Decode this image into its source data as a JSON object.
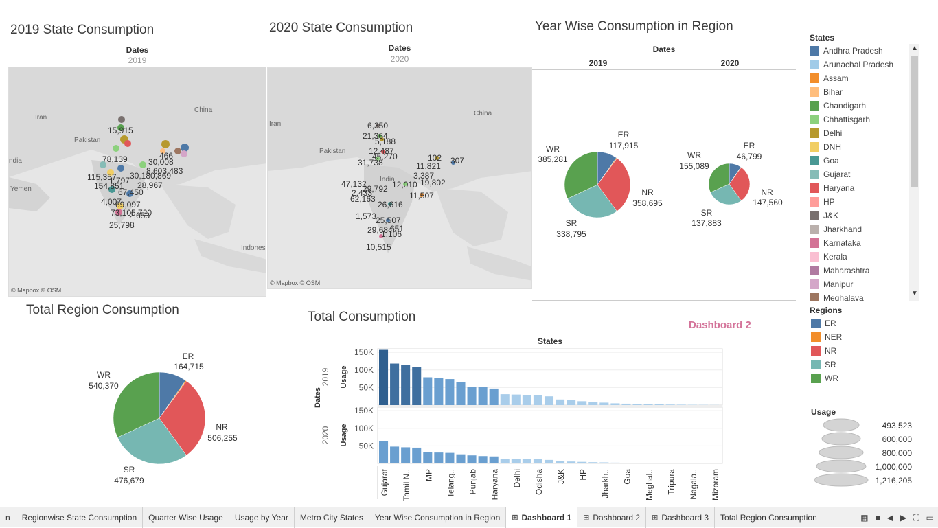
{
  "titles": {
    "state_2019": "2019 State Consumption",
    "state_2020": "2020 State Consumption",
    "year_region": "Year Wise Consumption in Region",
    "total_region": "Total Region Consumption",
    "total_consumption": "Total Consumption",
    "dashboard_label": "Dashboard 2"
  },
  "maps": {
    "dates_label": "Dates",
    "year_2019": "2019",
    "year_2020": "2020",
    "attribution": "© Mapbox © OSM",
    "map2019_labels": [
      "Iran",
      "Pakistan",
      "China",
      "Yemen",
      "Indones",
      "ndia",
      "15,915",
      "78,139",
      "115,357",
      "30,008",
      "8,603,483",
      "30,180,869",
      "466",
      "67,450",
      "28,967",
      "4,007",
      "69,097",
      "73,105,720",
      "2,653",
      "25,798",
      "154,851",
      "1,797"
    ],
    "map2020_labels": [
      "Iran",
      "Pakistan",
      "China",
      "India",
      "6,350",
      "21,364",
      "5,188",
      "12,487",
      "45,270",
      "31,738",
      "102",
      "307",
      "11,821",
      "3,387",
      "19,802",
      "47,132",
      "29,792",
      "2,433",
      "62,163",
      "12,010",
      "11,507",
      "26,616",
      "1,573",
      "25,507",
      "29,684",
      "651",
      "1,106",
      "10,515"
    ]
  },
  "year_region": {
    "dates_label": "Dates",
    "year_2019": "2019",
    "year_2020": "2020",
    "pie2019": {
      "WR": "385,281",
      "ER": "117,915",
      "NR": "358,695",
      "SR": "338,795"
    },
    "pie2020": {
      "WR": "155,089",
      "ER": "46,799",
      "NR": "147,560",
      "SR": "137,883"
    }
  },
  "total_region": {
    "WR": "540,370",
    "ER": "164,715",
    "NR": "506,255",
    "SR": "476,679"
  },
  "colors": {
    "ER": "#4e79a7",
    "NER": "#f28e2b",
    "NR": "#e15759",
    "SR": "#76b7b2",
    "WR": "#59a14f",
    "bar_dark": "#2f5f8f",
    "bar_mid": "#6a9fd0",
    "bar_light": "#a9cdea",
    "accent": "#d4749a"
  },
  "states_legend": {
    "title": "States",
    "items": [
      {
        "name": "Andhra Pradesh",
        "color": "#4e79a7"
      },
      {
        "name": "Arunachal Pradesh",
        "color": "#a0cbe8"
      },
      {
        "name": "Assam",
        "color": "#f28e2b"
      },
      {
        "name": "Bihar",
        "color": "#ffbe7d"
      },
      {
        "name": "Chandigarh",
        "color": "#59a14f"
      },
      {
        "name": "Chhattisgarh",
        "color": "#8cd17d"
      },
      {
        "name": "Delhi",
        "color": "#b6992d"
      },
      {
        "name": "DNH",
        "color": "#f1ce63"
      },
      {
        "name": "Goa",
        "color": "#499894"
      },
      {
        "name": "Gujarat",
        "color": "#86bcb6"
      },
      {
        "name": "Haryana",
        "color": "#e15759"
      },
      {
        "name": "HP",
        "color": "#ff9d9a"
      },
      {
        "name": "J&K",
        "color": "#79706e"
      },
      {
        "name": "Jharkhand",
        "color": "#bab0ac"
      },
      {
        "name": "Karnataka",
        "color": "#d37295"
      },
      {
        "name": "Kerala",
        "color": "#fabfd2"
      },
      {
        "name": "Maharashtra",
        "color": "#b07aa1"
      },
      {
        "name": "Manipur",
        "color": "#d4a6c8"
      },
      {
        "name": "Meghalaya",
        "color": "#9d7660"
      }
    ]
  },
  "regions_legend": {
    "title": "Regions",
    "items": [
      {
        "name": "ER",
        "color": "#4e79a7"
      },
      {
        "name": "NER",
        "color": "#f28e2b"
      },
      {
        "name": "NR",
        "color": "#e15759"
      },
      {
        "name": "SR",
        "color": "#76b7b2"
      },
      {
        "name": "WR",
        "color": "#59a14f"
      }
    ]
  },
  "usage_legend": {
    "title": "Usage",
    "items": [
      "493,523",
      "600,000",
      "800,000",
      "1,000,000",
      "1,216,205"
    ]
  },
  "chart_data": {
    "type": "bar",
    "title": "Total Consumption",
    "column_header": "States",
    "row_header": "Dates",
    "ylabel": "Usage",
    "ylim": [
      0,
      160000
    ],
    "yticks": [
      "150K",
      "100K",
      "50K"
    ],
    "categories": [
      "Gujarat",
      "",
      "Tamil N..",
      "",
      "MP",
      "",
      "Telang..",
      "",
      "Punjab",
      "",
      "Haryana",
      "",
      "Delhi",
      "",
      "Odisha",
      "",
      "J&K",
      "",
      "HP",
      "",
      "Jharkh..",
      "",
      "Goa",
      "",
      "Meghal..",
      "",
      "Tripura",
      "",
      "Nagala..",
      "",
      "Mizoram"
    ],
    "series": [
      {
        "name": "2019",
        "values": [
          157000,
          118000,
          114000,
          108000,
          79000,
          77000,
          74000,
          66000,
          52000,
          51000,
          47000,
          31000,
          30000,
          29000,
          29000,
          25000,
          16000,
          14000,
          11000,
          9000,
          7000,
          5000,
          4000,
          3000,
          2500,
          2000,
          1500,
          1200,
          800,
          600,
          400
        ]
      },
      {
        "name": "2020",
        "values": [
          64000,
          48000,
          46000,
          45000,
          33000,
          31000,
          30000,
          26000,
          23000,
          21000,
          20000,
          12000,
          12000,
          12000,
          12000,
          10000,
          6500,
          5500,
          4500,
          3500,
          3000,
          2200,
          1700,
          1300,
          1000,
          800,
          600,
          500,
          400,
          300,
          200
        ]
      }
    ]
  },
  "tabs": [
    {
      "label": "n",
      "active": false,
      "icon": false
    },
    {
      "label": "Regionwise State Consumption",
      "active": false,
      "icon": false
    },
    {
      "label": "Quarter Wise Usage",
      "active": false,
      "icon": false
    },
    {
      "label": "Usage by Year",
      "active": false,
      "icon": false
    },
    {
      "label": "Metro City States",
      "active": false,
      "icon": false
    },
    {
      "label": "Year Wise Consumption in Region",
      "active": false,
      "icon": false
    },
    {
      "label": "Dashboard 1",
      "active": true,
      "icon": true
    },
    {
      "label": "Dashboard 2",
      "active": false,
      "icon": true
    },
    {
      "label": "Dashboard 3",
      "active": false,
      "icon": true
    },
    {
      "label": "Total Region Consumption",
      "active": false,
      "icon": false
    }
  ]
}
